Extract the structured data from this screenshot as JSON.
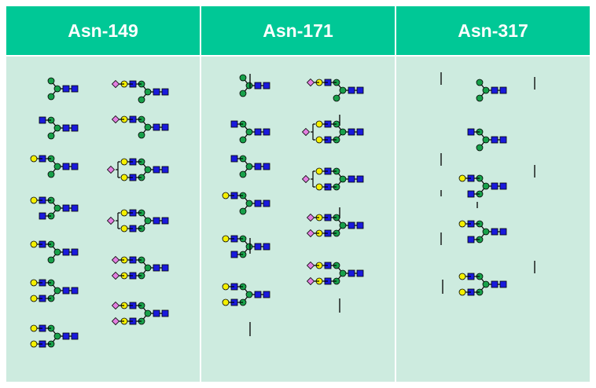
{
  "columns": [
    {
      "site": "Asn-149"
    },
    {
      "site": "Asn-171"
    },
    {
      "site": "Asn-317"
    }
  ],
  "colors": {
    "header_bg": "#00c896",
    "panel_bg": "#cdebdf",
    "GlcNAc": "#1a1adc",
    "Man": "#18a04a",
    "Gal": "#f4f000",
    "NeuAc": "#e37fe0"
  },
  "icons": [
    "GlcNAc-square-icon",
    "mannose-circle-icon",
    "galactose-circle-icon",
    "sialic-acid-diamond-icon"
  ]
}
